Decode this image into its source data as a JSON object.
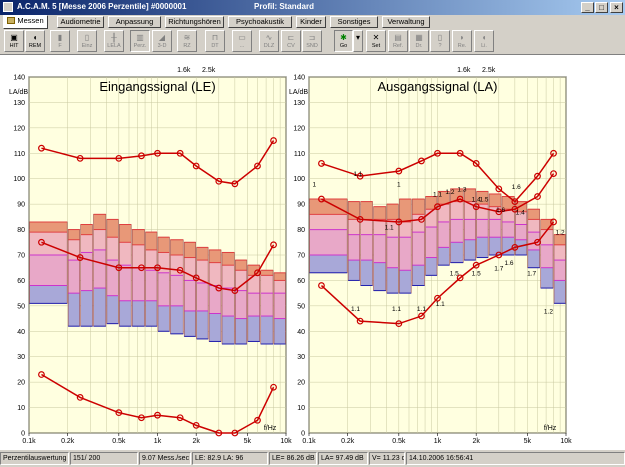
{
  "window": {
    "title": "A.C.A.M. 5 [Messe 2006 Perzentile] #0000001",
    "profile": "Profil: Standard",
    "controls": [
      "_",
      "□",
      "×"
    ]
  },
  "tabs": [
    "Messen",
    "Audiometrie",
    "Anpassung",
    "Richtungshören",
    "Psychoakustik",
    "Kinder",
    "Sonstiges",
    "Verwaltung"
  ],
  "toolbar": [
    {
      "label": "HIT",
      "enabled": true
    },
    {
      "label": "REM",
      "enabled": true
    },
    {
      "label": "F",
      "enabled": false
    },
    {
      "label": "Einz",
      "enabled": false
    },
    {
      "label": "LELA",
      "enabled": false
    },
    {
      "label": "Perz.",
      "enabled": false
    },
    {
      "label": "3-D",
      "enabled": false
    },
    {
      "label": "RZ",
      "enabled": false
    },
    {
      "label": "DT",
      "enabled": false
    },
    {
      "label": "...",
      "enabled": false
    },
    {
      "label": "DLZ",
      "enabled": false
    },
    {
      "label": "CV",
      "enabled": false
    },
    {
      "label": "SND",
      "enabled": false
    },
    {
      "label": "Go",
      "enabled": true
    },
    {
      "label": "Set",
      "enabled": true
    },
    {
      "label": "Ref.",
      "enabled": false
    },
    {
      "label": "Dr.",
      "enabled": false
    },
    {
      "label": "?",
      "enabled": false
    },
    {
      "label": "Re.",
      "enabled": false
    },
    {
      "label": "Li.",
      "enabled": false
    }
  ],
  "status": [
    "Perzentilauswertung",
    "151/ 200",
    "9.07 Mess./sec",
    "LE: 82.9  LA: 96",
    "LE= 86.26 dB",
    "LA= 97.49 dB",
    "V= 11.23 dB",
    "14.10.2006 16:56:41"
  ],
  "colors": {
    "grid_bg": "#ffffe0",
    "red_curve": "#cc0000",
    "blue_band": "#2020b0",
    "pink_band": "#cc33cc",
    "orange_band": "#e04040"
  },
  "chart_data": [
    {
      "type": "area",
      "title": "Eingangssignal (LE)",
      "ylabel": "LA/dB",
      "xlabel": "f/Hz",
      "x_scale": "log",
      "xlim": [
        100,
        10000
      ],
      "ylim": [
        0,
        140
      ],
      "x_ticks": [
        "0.1k",
        "0.2k",
        "0.5k",
        "1k",
        "2k",
        "5k",
        "10k"
      ],
      "x_ticks_top": [
        "1.6k",
        "2.5k"
      ],
      "y_ticks": [
        "0",
        "10",
        "20",
        "30",
        "40",
        "50",
        "60",
        "70",
        "80",
        "90",
        "100",
        "110",
        "120",
        "130",
        "140"
      ],
      "bands": [
        {
          "f1": 100,
          "f2": 200,
          "p10": 51,
          "p30": 58,
          "p50": 70,
          "p70": 79,
          "p90": 83
        },
        {
          "f1": 200,
          "f2": 250,
          "p10": 42,
          "p30": 55,
          "p50": 68,
          "p70": 76,
          "p90": 80
        },
        {
          "f1": 250,
          "f2": 315,
          "p10": 42,
          "p30": 56,
          "p50": 71,
          "p70": 78,
          "p90": 82
        },
        {
          "f1": 315,
          "f2": 400,
          "p10": 42,
          "p30": 57,
          "p50": 72,
          "p70": 80,
          "p90": 86
        },
        {
          "f1": 400,
          "f2": 500,
          "p10": 43,
          "p30": 54,
          "p50": 68,
          "p70": 77,
          "p90": 84
        },
        {
          "f1": 500,
          "f2": 630,
          "p10": 42,
          "p30": 52,
          "p50": 66,
          "p70": 75,
          "p90": 82
        },
        {
          "f1": 630,
          "f2": 800,
          "p10": 42,
          "p30": 52,
          "p50": 65,
          "p70": 74,
          "p90": 80
        },
        {
          "f1": 800,
          "f2": 1000,
          "p10": 42,
          "p30": 52,
          "p50": 64,
          "p70": 72,
          "p90": 79
        },
        {
          "f1": 1000,
          "f2": 1250,
          "p10": 40,
          "p30": 50,
          "p50": 63,
          "p70": 71,
          "p90": 77
        },
        {
          "f1": 1250,
          "f2": 1600,
          "p10": 39,
          "p30": 50,
          "p50": 62,
          "p70": 70,
          "p90": 76
        },
        {
          "f1": 1600,
          "f2": 2000,
          "p10": 38,
          "p30": 48,
          "p50": 60,
          "p70": 69,
          "p90": 75
        },
        {
          "f1": 2000,
          "f2": 2500,
          "p10": 37,
          "p30": 48,
          "p50": 59,
          "p70": 68,
          "p90": 73
        },
        {
          "f1": 2500,
          "f2": 3150,
          "p10": 36,
          "p30": 47,
          "p50": 58,
          "p70": 67,
          "p90": 72
        },
        {
          "f1": 3150,
          "f2": 4000,
          "p10": 35,
          "p30": 46,
          "p50": 57,
          "p70": 66,
          "p90": 71
        },
        {
          "f1": 4000,
          "f2": 5000,
          "p10": 35,
          "p30": 45,
          "p50": 56,
          "p70": 64,
          "p90": 68
        },
        {
          "f1": 5000,
          "f2": 6300,
          "p10": 36,
          "p30": 46,
          "p50": 55,
          "p70": 62,
          "p90": 66
        },
        {
          "f1": 6300,
          "f2": 8000,
          "p10": 35,
          "p30": 46,
          "p50": 55,
          "p70": 62,
          "p90": 64
        },
        {
          "f1": 8000,
          "f2": 10000,
          "p10": 35,
          "p30": 45,
          "p50": 55,
          "p70": 60,
          "p90": 63
        }
      ],
      "series": [
        {
          "points": [
            [
              125,
              112
            ],
            [
              250,
              108
            ],
            [
              500,
              108
            ],
            [
              750,
              109
            ],
            [
              1000,
              110
            ],
            [
              1500,
              110
            ],
            [
              2000,
              105
            ],
            [
              3000,
              99
            ],
            [
              4000,
              98
            ],
            [
              6000,
              105
            ],
            [
              8000,
              115
            ]
          ]
        },
        {
          "points": [
            [
              125,
              75
            ],
            [
              250,
              69
            ],
            [
              500,
              65
            ],
            [
              750,
              65
            ],
            [
              1000,
              65
            ],
            [
              1500,
              64
            ],
            [
              2000,
              61
            ],
            [
              3000,
              57
            ],
            [
              4000,
              56
            ],
            [
              6000,
              63
            ],
            [
              8000,
              74
            ]
          ]
        },
        {
          "points": [
            [
              125,
              23
            ],
            [
              250,
              14
            ],
            [
              500,
              8
            ],
            [
              750,
              6
            ],
            [
              1000,
              7
            ],
            [
              1500,
              6
            ],
            [
              2000,
              3
            ],
            [
              3000,
              0
            ],
            [
              4000,
              0
            ],
            [
              6000,
              5
            ],
            [
              8000,
              18
            ]
          ]
        }
      ]
    },
    {
      "type": "area",
      "title": "Ausgangssignal (LA)",
      "ylabel": "LA/dB",
      "xlabel": "f/Hz",
      "x_scale": "log",
      "xlim": [
        100,
        10000
      ],
      "ylim": [
        0,
        140
      ],
      "x_ticks": [
        "0.1k",
        "0.2k",
        "0.5k",
        "1k",
        "2k",
        "5k",
        "10k"
      ],
      "x_ticks_top": [
        "1.6k",
        "2.5k"
      ],
      "y_ticks": [
        "0",
        "10",
        "20",
        "30",
        "40",
        "50",
        "60",
        "70",
        "80",
        "90",
        "100",
        "110",
        "120",
        "130",
        "140"
      ],
      "bands": [
        {
          "f1": 100,
          "f2": 200,
          "p10": 63,
          "p30": 70,
          "p50": 80,
          "p70": 86,
          "p90": 92
        },
        {
          "f1": 200,
          "f2": 250,
          "p10": 60,
          "p30": 68,
          "p50": 78,
          "p70": 84,
          "p90": 91
        },
        {
          "f1": 250,
          "f2": 315,
          "p10": 58,
          "p30": 68,
          "p50": 78,
          "p70": 84,
          "p90": 91
        },
        {
          "f1": 315,
          "f2": 400,
          "p10": 56,
          "p30": 67,
          "p50": 78,
          "p70": 84,
          "p90": 89
        },
        {
          "f1": 400,
          "f2": 500,
          "p10": 55,
          "p30": 65,
          "p50": 77,
          "p70": 84,
          "p90": 90
        },
        {
          "f1": 500,
          "f2": 630,
          "p10": 55,
          "p30": 64,
          "p50": 77,
          "p70": 83,
          "p90": 92
        },
        {
          "f1": 630,
          "f2": 800,
          "p10": 58,
          "p30": 66,
          "p50": 79,
          "p70": 86,
          "p90": 92
        },
        {
          "f1": 800,
          "f2": 1000,
          "p10": 62,
          "p30": 69,
          "p50": 81,
          "p70": 88,
          "p90": 93
        },
        {
          "f1": 1000,
          "f2": 1250,
          "p10": 66,
          "p30": 73,
          "p50": 83,
          "p70": 90,
          "p90": 95
        },
        {
          "f1": 1250,
          "f2": 1600,
          "p10": 67,
          "p30": 75,
          "p50": 84,
          "p70": 91,
          "p90": 96
        },
        {
          "f1": 1600,
          "f2": 2000,
          "p10": 68,
          "p30": 76,
          "p50": 84,
          "p70": 91,
          "p90": 96
        },
        {
          "f1": 2000,
          "f2": 2500,
          "p10": 69,
          "p30": 77,
          "p50": 84,
          "p70": 90,
          "p90": 95
        },
        {
          "f1": 2500,
          "f2": 3150,
          "p10": 70,
          "p30": 77,
          "p50": 84,
          "p70": 89,
          "p90": 94
        },
        {
          "f1": 3150,
          "f2": 4000,
          "p10": 70,
          "p30": 77,
          "p50": 83,
          "p70": 88,
          "p90": 93
        },
        {
          "f1": 4000,
          "f2": 5000,
          "p10": 70,
          "p30": 76,
          "p50": 82,
          "p70": 87,
          "p90": 91
        },
        {
          "f1": 5000,
          "f2": 6300,
          "p10": 65,
          "p30": 72,
          "p50": 79,
          "p70": 84,
          "p90": 88
        },
        {
          "f1": 6300,
          "f2": 8000,
          "p10": 57,
          "p30": 65,
          "p50": 74,
          "p70": 80,
          "p90": 84
        },
        {
          "f1": 8000,
          "f2": 10000,
          "p10": 51,
          "p30": 60,
          "p50": 68,
          "p70": 74,
          "p90": 78
        }
      ],
      "series": [
        {
          "points": [
            [
              125,
              106
            ],
            [
              250,
              101
            ],
            [
              500,
              103
            ],
            [
              750,
              107
            ],
            [
              1000,
              110
            ],
            [
              1500,
              110
            ],
            [
              2000,
              106
            ],
            [
              3000,
              96
            ],
            [
              4000,
              91
            ],
            [
              6000,
              101
            ],
            [
              8000,
              110
            ]
          ]
        },
        {
          "points": [
            [
              125,
              92
            ],
            [
              250,
              84
            ],
            [
              500,
              83
            ],
            [
              750,
              84
            ],
            [
              1000,
              89
            ],
            [
              1500,
              92
            ],
            [
              2000,
              89
            ],
            [
              3000,
              87
            ],
            [
              4000,
              88
            ],
            [
              6000,
              93
            ],
            [
              8000,
              102
            ]
          ]
        },
        {
          "points": [
            [
              125,
              58
            ],
            [
              250,
              44
            ],
            [
              500,
              43
            ],
            [
              750,
              46
            ],
            [
              1000,
              53
            ],
            [
              1500,
              61
            ],
            [
              2000,
              66
            ],
            [
              3000,
              70
            ],
            [
              4000,
              73
            ],
            [
              6000,
              75
            ],
            [
              8000,
              83
            ]
          ]
        }
      ],
      "annotations": [
        {
          "x": 110,
          "y": 97,
          "text": "1"
        },
        {
          "x": 240,
          "y": 101,
          "text": "1.1"
        },
        {
          "x": 500,
          "y": 97,
          "text": "1"
        },
        {
          "x": 1000,
          "y": 93,
          "text": "1.1"
        },
        {
          "x": 1250,
          "y": 94,
          "text": "1.2"
        },
        {
          "x": 1550,
          "y": 95,
          "text": "1.3"
        },
        {
          "x": 2000,
          "y": 91,
          "text": "1.4"
        },
        {
          "x": 2300,
          "y": 91,
          "text": "1.5"
        },
        {
          "x": 3100,
          "y": 87,
          "text": "1.6"
        },
        {
          "x": 4100,
          "y": 96,
          "text": "1.6"
        },
        {
          "x": 4400,
          "y": 86,
          "text": "1.4"
        },
        {
          "x": 9000,
          "y": 78,
          "text": "1.2"
        },
        {
          "x": 420,
          "y": 80,
          "text": "1.1"
        },
        {
          "x": 230,
          "y": 48,
          "text": "1.1"
        },
        {
          "x": 480,
          "y": 48,
          "text": "1.1"
        },
        {
          "x": 750,
          "y": 48,
          "text": "1.1"
        },
        {
          "x": 1050,
          "y": 50,
          "text": "1.1"
        },
        {
          "x": 1350,
          "y": 62,
          "text": "1.5"
        },
        {
          "x": 2000,
          "y": 62,
          "text": "1.5"
        },
        {
          "x": 3000,
          "y": 64,
          "text": "1.7"
        },
        {
          "x": 3600,
          "y": 66,
          "text": "1.6"
        },
        {
          "x": 5400,
          "y": 62,
          "text": "1.7"
        },
        {
          "x": 7300,
          "y": 47,
          "text": "1.2"
        }
      ]
    }
  ]
}
